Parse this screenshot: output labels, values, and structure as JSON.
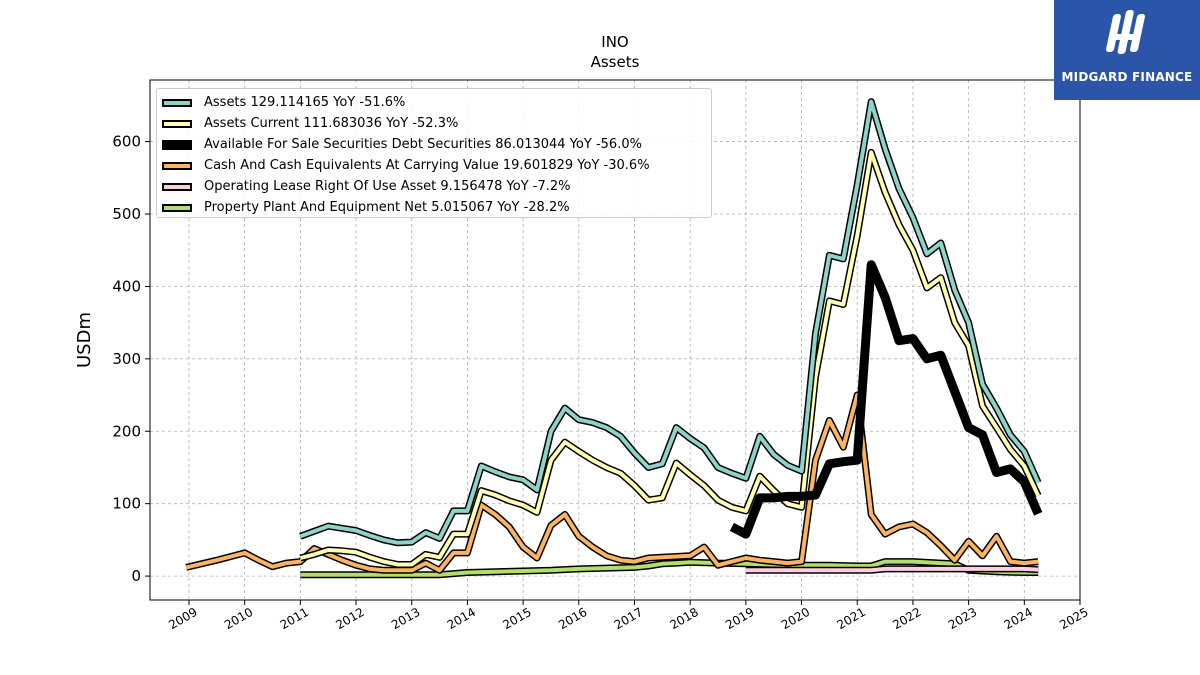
{
  "chart_data": {
    "type": "line",
    "title": "INO",
    "subtitle": "Assets",
    "ylabel": "USDm",
    "xlabel": "",
    "xlim": [
      2008.3,
      2025.0
    ],
    "ylim": [
      -33,
      685
    ],
    "x_ticks": [
      "2009",
      "2010",
      "2011",
      "2012",
      "2013",
      "2014",
      "2015",
      "2016",
      "2017",
      "2018",
      "2019",
      "2020",
      "2021",
      "2022",
      "2023",
      "2024",
      "2025"
    ],
    "y_ticks": [
      "0",
      "100",
      "200",
      "300",
      "400",
      "500",
      "600"
    ],
    "grid": true,
    "legend_position": "top-left",
    "series": [
      {
        "name": "Assets",
        "legend": "Assets  129.114165 YoY -51.6%",
        "color": "#8dd3c7",
        "x": [
          2011.0,
          2011.25,
          2011.5,
          2011.75,
          2012.0,
          2012.25,
          2012.5,
          2012.75,
          2013.0,
          2013.25,
          2013.5,
          2013.75,
          2014.0,
          2014.25,
          2014.5,
          2014.75,
          2015.0,
          2015.25,
          2015.5,
          2015.75,
          2016.0,
          2016.25,
          2016.5,
          2016.75,
          2017.0,
          2017.25,
          2017.5,
          2017.75,
          2018.0,
          2018.25,
          2018.5,
          2018.75,
          2019.0,
          2019.25,
          2019.5,
          2019.75,
          2020.0,
          2020.25,
          2020.5,
          2020.75,
          2021.0,
          2021.25,
          2021.5,
          2021.75,
          2022.0,
          2022.25,
          2022.5,
          2022.75,
          2023.0,
          2023.25,
          2023.5,
          2023.75,
          2024.0,
          2024.25
        ],
        "y": [
          55,
          62,
          69,
          66,
          63,
          56,
          50,
          46,
          47,
          60,
          52,
          90,
          90,
          152,
          144,
          137,
          133,
          119,
          200,
          232,
          216,
          212,
          205,
          193,
          170,
          150,
          155,
          205,
          190,
          177,
          150,
          142,
          135,
          193,
          168,
          153,
          145,
          335,
          443,
          438,
          540,
          655,
          590,
          535,
          495,
          445,
          460,
          395,
          350,
          265,
          232,
          195,
          172,
          129
        ]
      },
      {
        "name": "Assets Current",
        "legend": "Assets Current  111.683036 YoY -52.3%",
        "color": "#ffffb3",
        "x": [
          2011.0,
          2011.25,
          2011.5,
          2011.75,
          2012.0,
          2012.25,
          2012.5,
          2012.75,
          2013.0,
          2013.25,
          2013.5,
          2013.75,
          2014.0,
          2014.25,
          2014.5,
          2014.75,
          2015.0,
          2015.25,
          2015.5,
          2015.75,
          2016.0,
          2016.25,
          2016.5,
          2016.75,
          2017.0,
          2017.25,
          2017.5,
          2017.75,
          2018.0,
          2018.25,
          2018.5,
          2018.75,
          2019.0,
          2019.25,
          2019.5,
          2019.75,
          2020.0,
          2020.25,
          2020.5,
          2020.75,
          2021.0,
          2021.25,
          2021.5,
          2021.75,
          2022.0,
          2022.25,
          2022.5,
          2022.75,
          2023.0,
          2023.25,
          2023.5,
          2023.75,
          2024.0,
          2024.25
        ],
        "y": [
          25,
          30,
          36,
          35,
          33,
          26,
          20,
          16,
          16,
          30,
          26,
          58,
          58,
          118,
          112,
          104,
          98,
          88,
          160,
          185,
          172,
          160,
          150,
          142,
          125,
          105,
          108,
          156,
          140,
          125,
          105,
          95,
          90,
          138,
          118,
          100,
          95,
          275,
          380,
          375,
          470,
          585,
          530,
          485,
          450,
          398,
          412,
          350,
          318,
          235,
          205,
          175,
          152,
          111
        ]
      },
      {
        "name": "Available For Sale Securities Debt Securities",
        "legend": "Available For Sale Securities Debt Securities  86.013044 YoY -56.0%",
        "color": "#000000",
        "x": [
          2018.75,
          2019.0,
          2019.25,
          2019.5,
          2019.75,
          2020.0,
          2020.25,
          2020.5,
          2020.75,
          2021.0,
          2021.25,
          2021.5,
          2021.75,
          2022.0,
          2022.25,
          2022.5,
          2022.75,
          2023.0,
          2023.25,
          2023.5,
          2023.75,
          2024.0,
          2024.25
        ],
        "y": [
          68,
          58,
          108,
          108,
          110,
          110,
          112,
          155,
          158,
          160,
          430,
          385,
          325,
          328,
          300,
          305,
          255,
          205,
          195,
          143,
          148,
          130,
          86
        ]
      },
      {
        "name": "Cash And Cash Equivalents At Carrying Value",
        "legend": "Cash And Cash Equivalents At Carrying Value  19.601829 YoY -30.6%",
        "color": "#fdb462",
        "x": [
          2008.95,
          2009.5,
          2010.0,
          2010.25,
          2010.5,
          2010.75,
          2011.0,
          2011.25,
          2011.5,
          2011.75,
          2012.0,
          2012.25,
          2012.5,
          2012.75,
          2013.0,
          2013.25,
          2013.5,
          2013.75,
          2014.0,
          2014.25,
          2014.5,
          2014.75,
          2015.0,
          2015.25,
          2015.5,
          2015.75,
          2016.0,
          2016.25,
          2016.5,
          2016.75,
          2017.0,
          2017.25,
          2017.5,
          2017.75,
          2018.0,
          2018.25,
          2018.5,
          2018.75,
          2019.0,
          2019.25,
          2019.5,
          2019.75,
          2020.0,
          2020.25,
          2020.5,
          2020.75,
          2021.0,
          2021.25,
          2021.5,
          2021.75,
          2022.0,
          2022.25,
          2022.5,
          2022.75,
          2023.0,
          2023.25,
          2023.5,
          2023.75,
          2024.0,
          2024.25
        ],
        "y": [
          12,
          22,
          32,
          22,
          13,
          18,
          20,
          38,
          30,
          22,
          15,
          10,
          8,
          8,
          8,
          18,
          8,
          32,
          32,
          98,
          85,
          68,
          40,
          25,
          70,
          85,
          55,
          40,
          28,
          22,
          20,
          25,
          26,
          27,
          28,
          40,
          15,
          20,
          25,
          22,
          20,
          18,
          20,
          160,
          215,
          178,
          250,
          85,
          58,
          68,
          72,
          60,
          42,
          22,
          48,
          28,
          55,
          20,
          18,
          20
        ]
      },
      {
        "name": "Operating Lease Right Of Use Asset",
        "legend": "Operating Lease Right Of Use Asset  9.156478 YoY -7.2%",
        "color": "#fccde5",
        "x": [
          2019.0,
          2019.25,
          2019.5,
          2019.75,
          2020.0,
          2020.25,
          2020.5,
          2020.75,
          2021.0,
          2021.25,
          2021.5,
          2021.75,
          2022.0,
          2022.25,
          2022.5,
          2022.75,
          2023.0,
          2023.25,
          2023.5,
          2023.75,
          2024.0,
          2024.25
        ],
        "y": [
          8,
          8,
          8,
          8,
          8,
          8,
          8,
          8,
          8,
          8,
          10,
          10,
          10,
          10,
          10,
          10,
          10,
          10,
          10,
          10,
          10,
          9
        ]
      },
      {
        "name": "Property Plant And Equipment Net",
        "legend": "Property Plant And Equipment Net  5.015067 YoY -28.2%",
        "color": "#b3de69",
        "x": [
          2011.0,
          2012.0,
          2013.0,
          2013.5,
          2014.0,
          2014.5,
          2015.0,
          2015.5,
          2016.0,
          2016.5,
          2017.0,
          2017.25,
          2017.5,
          2017.75,
          2018.0,
          2018.5,
          2019.0,
          2019.5,
          2020.0,
          2020.5,
          2021.0,
          2021.25,
          2021.5,
          2022.0,
          2022.5,
          2022.75,
          2023.0,
          2023.5,
          2024.0,
          2024.25
        ],
        "y": [
          2,
          2,
          2,
          2,
          5,
          6,
          7,
          8,
          10,
          11,
          12,
          14,
          17,
          18,
          19,
          18,
          17,
          16,
          15,
          15,
          14,
          14,
          20,
          20,
          18,
          17,
          8,
          6,
          5,
          5
        ]
      }
    ]
  },
  "logo": {
    "text": "MIDGARD FINANCE"
  }
}
